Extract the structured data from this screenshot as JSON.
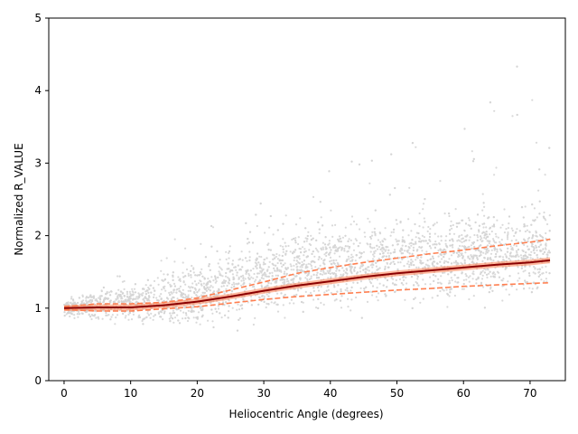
{
  "chart_data": {
    "type": "scatter",
    "title": "",
    "xlabel": "Heliocentric Angle (degrees)",
    "ylabel": "Normalized R_VALUE",
    "xlim": [
      -2.3,
      75.3
    ],
    "ylim": [
      0,
      5
    ],
    "x_ticks": [
      0,
      10,
      20,
      30,
      40,
      50,
      60,
      70
    ],
    "y_ticks": [
      0,
      1,
      2,
      3,
      4,
      5
    ],
    "grid": false,
    "legend": "none",
    "colors": {
      "scatter": "#d3d3d3",
      "envelope": "#ff7f50",
      "trend": "#8b0000",
      "quantile": "#ff7f50",
      "axis": "#000000"
    },
    "x_range_data": [
      0,
      73
    ],
    "scatter_description_bands": [
      {
        "x": 0,
        "low": 0.85,
        "high": 1.15
      },
      {
        "x": 10,
        "low": 0.7,
        "high": 1.45
      },
      {
        "x": 20,
        "low": 0.6,
        "high": 1.75
      },
      {
        "x": 30,
        "low": 0.7,
        "high": 2.2
      },
      {
        "x": 40,
        "low": 0.85,
        "high": 2.35
      },
      {
        "x": 50,
        "low": 0.9,
        "high": 2.45
      },
      {
        "x": 60,
        "low": 0.9,
        "high": 2.55
      },
      {
        "x": 73,
        "low": 0.9,
        "high": 2.7
      }
    ],
    "series": [
      {
        "name": "",
        "style": "solid",
        "color": "#8b0000",
        "x": [
          0,
          5,
          10,
          15,
          20,
          25,
          30,
          35,
          40,
          45,
          50,
          55,
          60,
          65,
          70,
          73
        ],
        "y": [
          1.0,
          1.01,
          1.01,
          1.04,
          1.09,
          1.16,
          1.24,
          1.31,
          1.37,
          1.43,
          1.48,
          1.52,
          1.56,
          1.6,
          1.63,
          1.66
        ]
      },
      {
        "name": "",
        "style": "dashed",
        "color": "#ff7f50",
        "x": [
          0,
          5,
          10,
          15,
          20,
          25,
          30,
          35,
          40,
          45,
          50,
          55,
          60,
          65,
          70,
          73
        ],
        "y": [
          1.02,
          1.06,
          1.06,
          1.08,
          1.14,
          1.25,
          1.36,
          1.48,
          1.56,
          1.63,
          1.69,
          1.75,
          1.8,
          1.86,
          1.91,
          1.95
        ]
      },
      {
        "name": "",
        "style": "dashed",
        "color": "#ff7f50",
        "x": [
          0,
          5,
          10,
          15,
          20,
          25,
          30,
          35,
          40,
          45,
          50,
          55,
          60,
          65,
          70,
          73
        ],
        "y": [
          0.98,
          0.96,
          0.96,
          0.99,
          1.02,
          1.07,
          1.12,
          1.16,
          1.19,
          1.22,
          1.25,
          1.27,
          1.3,
          1.32,
          1.34,
          1.35
        ]
      }
    ]
  }
}
